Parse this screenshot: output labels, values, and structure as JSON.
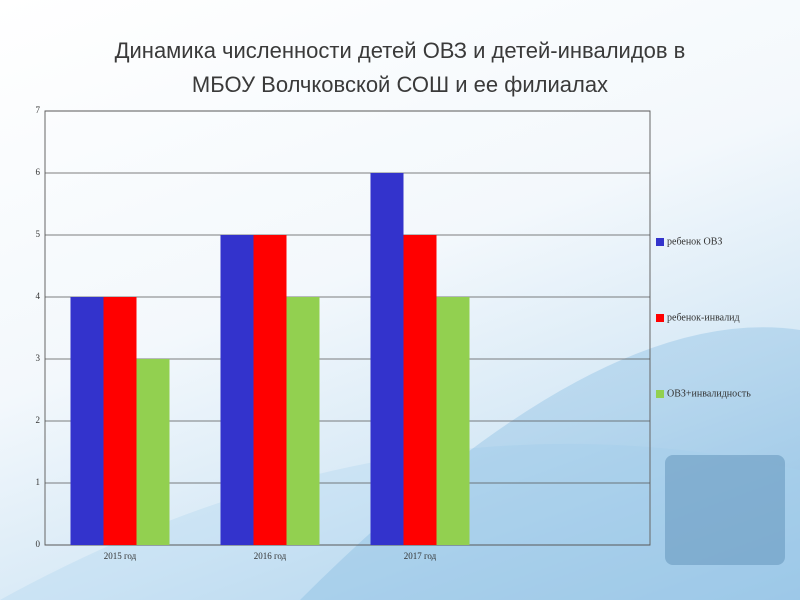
{
  "chart_data": {
    "type": "bar",
    "title": [
      "Динамика численности детей ОВЗ и детей-инвалидов в",
      "МБОУ Волчковской СОШ и ее филиалах"
    ],
    "categories": [
      "2015 год",
      "2016 год",
      "2017 год"
    ],
    "series": [
      {
        "name": "ребенок ОВЗ",
        "color": "#3333cc",
        "values": [
          4,
          5,
          6
        ]
      },
      {
        "name": "ребенок-инвалид",
        "color": "#ff0000",
        "values": [
          4,
          5,
          5
        ]
      },
      {
        "name": "ОВЗ+инвалидность",
        "color": "#92d050",
        "values": [
          3,
          4,
          4
        ]
      }
    ],
    "ylim": [
      0,
      7
    ],
    "yticks": [
      0,
      1,
      2,
      3,
      4,
      5,
      6,
      7
    ],
    "grid": true,
    "legend": "right"
  }
}
